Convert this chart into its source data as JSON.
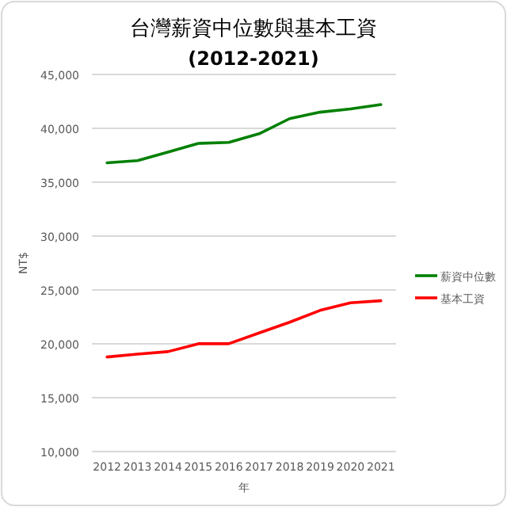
{
  "chart_data": {
    "type": "line",
    "title": "台灣薪資中位數與基本工資",
    "subtitle": "(2012-2021)",
    "xlabel": "年",
    "ylabel": "NT$",
    "categories": [
      "2012",
      "2013",
      "2014",
      "2015",
      "2016",
      "2017",
      "2018",
      "2019",
      "2020",
      "2021"
    ],
    "series": [
      {
        "name": "薪資中位數",
        "color": "#008000",
        "values": [
          36800,
          37000,
          37800,
          38600,
          38700,
          39500,
          40900,
          41500,
          41800,
          42200
        ]
      },
      {
        "name": "基本工資",
        "color": "#ff0000",
        "values": [
          18780,
          19047,
          19273,
          20008,
          20008,
          21009,
          22000,
          23100,
          23800,
          24000
        ]
      }
    ],
    "ylim": [
      10000,
      45000
    ],
    "yticks": [
      {
        "value": 10000,
        "label": "10,000"
      },
      {
        "value": 15000,
        "label": "15,000"
      },
      {
        "value": 20000,
        "label": "20,000"
      },
      {
        "value": 25000,
        "label": "25,000"
      },
      {
        "value": 30000,
        "label": "30,000"
      },
      {
        "value": 35000,
        "label": "35,000"
      },
      {
        "value": 40000,
        "label": "40,000"
      },
      {
        "value": 45000,
        "label": "45,000"
      }
    ],
    "grid": "y",
    "legend": "right",
    "marker": "none",
    "line_style": "solid"
  }
}
